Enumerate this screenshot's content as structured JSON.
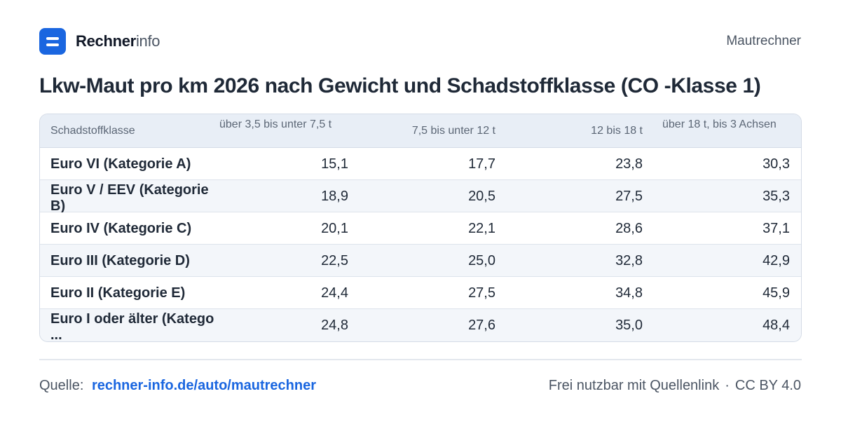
{
  "header": {
    "brand_bold": "Rechner",
    "brand_light": "info",
    "nav_link": "Mautrechner"
  },
  "title": "Lkw-Maut pro km 2026 nach Gewicht und Schadstoffklasse (CO -Klasse 1)",
  "table": {
    "columns": [
      "Schadstoffklasse",
      "über 3,5 bis unter 7,5 t",
      "7,5 bis unter 12 t",
      "12 bis 18 t",
      "über 18 t, bis 3 Achsen"
    ],
    "rows": [
      {
        "label": "Euro VI (Kategorie A)",
        "values": [
          "15,1",
          "17,7",
          "23,8",
          "30,3"
        ]
      },
      {
        "label": "Euro V / EEV (Kategorie B)",
        "values": [
          "18,9",
          "20,5",
          "27,5",
          "35,3"
        ]
      },
      {
        "label": "Euro IV (Kategorie C)",
        "values": [
          "20,1",
          "22,1",
          "28,6",
          "37,1"
        ]
      },
      {
        "label": "Euro III (Kategorie D)",
        "values": [
          "22,5",
          "25,0",
          "32,8",
          "42,9"
        ]
      },
      {
        "label": "Euro II (Kategorie E)",
        "values": [
          "24,4",
          "27,5",
          "34,8",
          "45,9"
        ]
      },
      {
        "label": "Euro I oder älter (Katego ...",
        "values": [
          "24,8",
          "27,6",
          "35,0",
          "48,4"
        ]
      }
    ]
  },
  "footer": {
    "source_label": "Quelle:",
    "source_link": "rechner-info.de/auto/mautrechner",
    "license_text": "Frei nutzbar mit Quellenlink",
    "separator": "·",
    "license": "CC BY 4.0"
  },
  "colors": {
    "brand": "#1a66e0",
    "header_bg": "#e8eef6",
    "alt_row_bg": "#f3f6fa"
  }
}
